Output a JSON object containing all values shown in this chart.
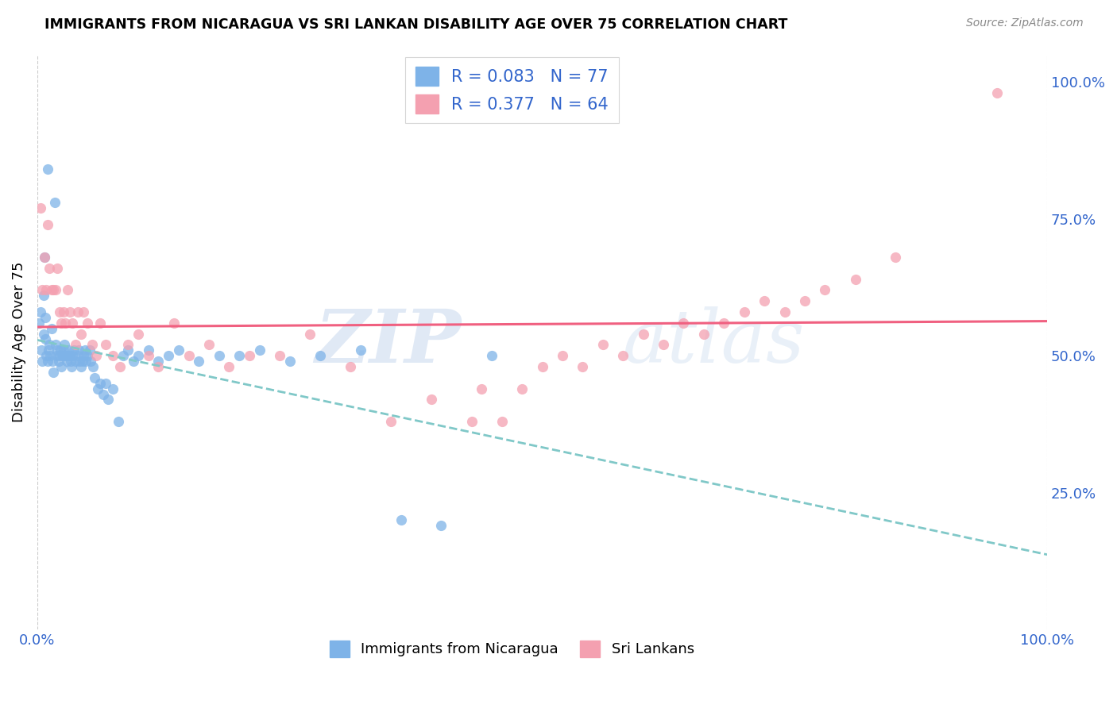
{
  "title": "IMMIGRANTS FROM NICARAGUA VS SRI LANKAN DISABILITY AGE OVER 75 CORRELATION CHART",
  "source": "Source: ZipAtlas.com",
  "ylabel": "Disability Age Over 75",
  "legend_label_1": "Immigrants from Nicaragua",
  "legend_label_2": "Sri Lankans",
  "r1": "0.083",
  "n1": "77",
  "r2": "0.377",
  "n2": "64",
  "color_blue": "#7eb3e8",
  "color_pink": "#f4a0b0",
  "color_trendline_blue": "#80c8c8",
  "color_trendline_pink": "#f06080",
  "watermark_zip": "ZIP",
  "watermark_atlas": "atlas",
  "nic_x": [
    0.002,
    0.003,
    0.004,
    0.005,
    0.006,
    0.006,
    0.007,
    0.008,
    0.008,
    0.009,
    0.01,
    0.01,
    0.011,
    0.012,
    0.013,
    0.014,
    0.015,
    0.016,
    0.017,
    0.018,
    0.019,
    0.02,
    0.021,
    0.022,
    0.023,
    0.024,
    0.025,
    0.026,
    0.027,
    0.028,
    0.029,
    0.03,
    0.031,
    0.032,
    0.033,
    0.034,
    0.035,
    0.036,
    0.038,
    0.04,
    0.041,
    0.042,
    0.043,
    0.045,
    0.046,
    0.047,
    0.048,
    0.05,
    0.052,
    0.053,
    0.055,
    0.057,
    0.06,
    0.062,
    0.065,
    0.068,
    0.07,
    0.075,
    0.08,
    0.085,
    0.09,
    0.095,
    0.1,
    0.11,
    0.12,
    0.13,
    0.14,
    0.16,
    0.18,
    0.2,
    0.22,
    0.25,
    0.28,
    0.32,
    0.36,
    0.4,
    0.45
  ],
  "nic_y": [
    0.56,
    0.58,
    0.51,
    0.49,
    0.54,
    0.61,
    0.68,
    0.53,
    0.57,
    0.5,
    0.84,
    0.49,
    0.51,
    0.52,
    0.5,
    0.55,
    0.49,
    0.47,
    0.78,
    0.52,
    0.5,
    0.51,
    0.49,
    0.5,
    0.51,
    0.48,
    0.5,
    0.51,
    0.52,
    0.5,
    0.49,
    0.5,
    0.51,
    0.5,
    0.49,
    0.48,
    0.5,
    0.51,
    0.49,
    0.5,
    0.51,
    0.49,
    0.48,
    0.49,
    0.5,
    0.51,
    0.49,
    0.5,
    0.51,
    0.49,
    0.48,
    0.46,
    0.44,
    0.45,
    0.43,
    0.45,
    0.42,
    0.44,
    0.38,
    0.5,
    0.51,
    0.49,
    0.5,
    0.51,
    0.49,
    0.5,
    0.51,
    0.49,
    0.5,
    0.5,
    0.51,
    0.49,
    0.5,
    0.51,
    0.2,
    0.19,
    0.5
  ],
  "sri_x": [
    0.003,
    0.005,
    0.007,
    0.009,
    0.01,
    0.012,
    0.014,
    0.016,
    0.018,
    0.02,
    0.022,
    0.024,
    0.026,
    0.028,
    0.03,
    0.032,
    0.035,
    0.038,
    0.04,
    0.043,
    0.046,
    0.05,
    0.054,
    0.058,
    0.062,
    0.068,
    0.075,
    0.082,
    0.09,
    0.1,
    0.11,
    0.12,
    0.135,
    0.15,
    0.17,
    0.19,
    0.21,
    0.24,
    0.27,
    0.31,
    0.35,
    0.39,
    0.43,
    0.44,
    0.46,
    0.48,
    0.5,
    0.52,
    0.54,
    0.56,
    0.58,
    0.6,
    0.62,
    0.64,
    0.66,
    0.68,
    0.7,
    0.72,
    0.74,
    0.76,
    0.78,
    0.81,
    0.85,
    0.95
  ],
  "sri_y": [
    0.77,
    0.62,
    0.68,
    0.62,
    0.74,
    0.66,
    0.62,
    0.62,
    0.62,
    0.66,
    0.58,
    0.56,
    0.58,
    0.56,
    0.62,
    0.58,
    0.56,
    0.52,
    0.58,
    0.54,
    0.58,
    0.56,
    0.52,
    0.5,
    0.56,
    0.52,
    0.5,
    0.48,
    0.52,
    0.54,
    0.5,
    0.48,
    0.56,
    0.5,
    0.52,
    0.48,
    0.5,
    0.5,
    0.54,
    0.48,
    0.38,
    0.42,
    0.38,
    0.44,
    0.38,
    0.44,
    0.48,
    0.5,
    0.48,
    0.52,
    0.5,
    0.54,
    0.52,
    0.56,
    0.54,
    0.56,
    0.58,
    0.6,
    0.58,
    0.6,
    0.62,
    0.64,
    0.68,
    0.98
  ],
  "ylim_min": 0.0,
  "ylim_max": 1.05,
  "xlim_min": 0.0,
  "xlim_max": 1.0,
  "yticks_right": [
    0.25,
    0.5,
    0.75,
    1.0
  ],
  "ytick_labels_right": [
    "25.0%",
    "50.0%",
    "75.0%",
    "100.0%"
  ],
  "xticks": [
    0.0,
    1.0
  ],
  "xtick_labels": [
    "0.0%",
    "100.0%"
  ]
}
